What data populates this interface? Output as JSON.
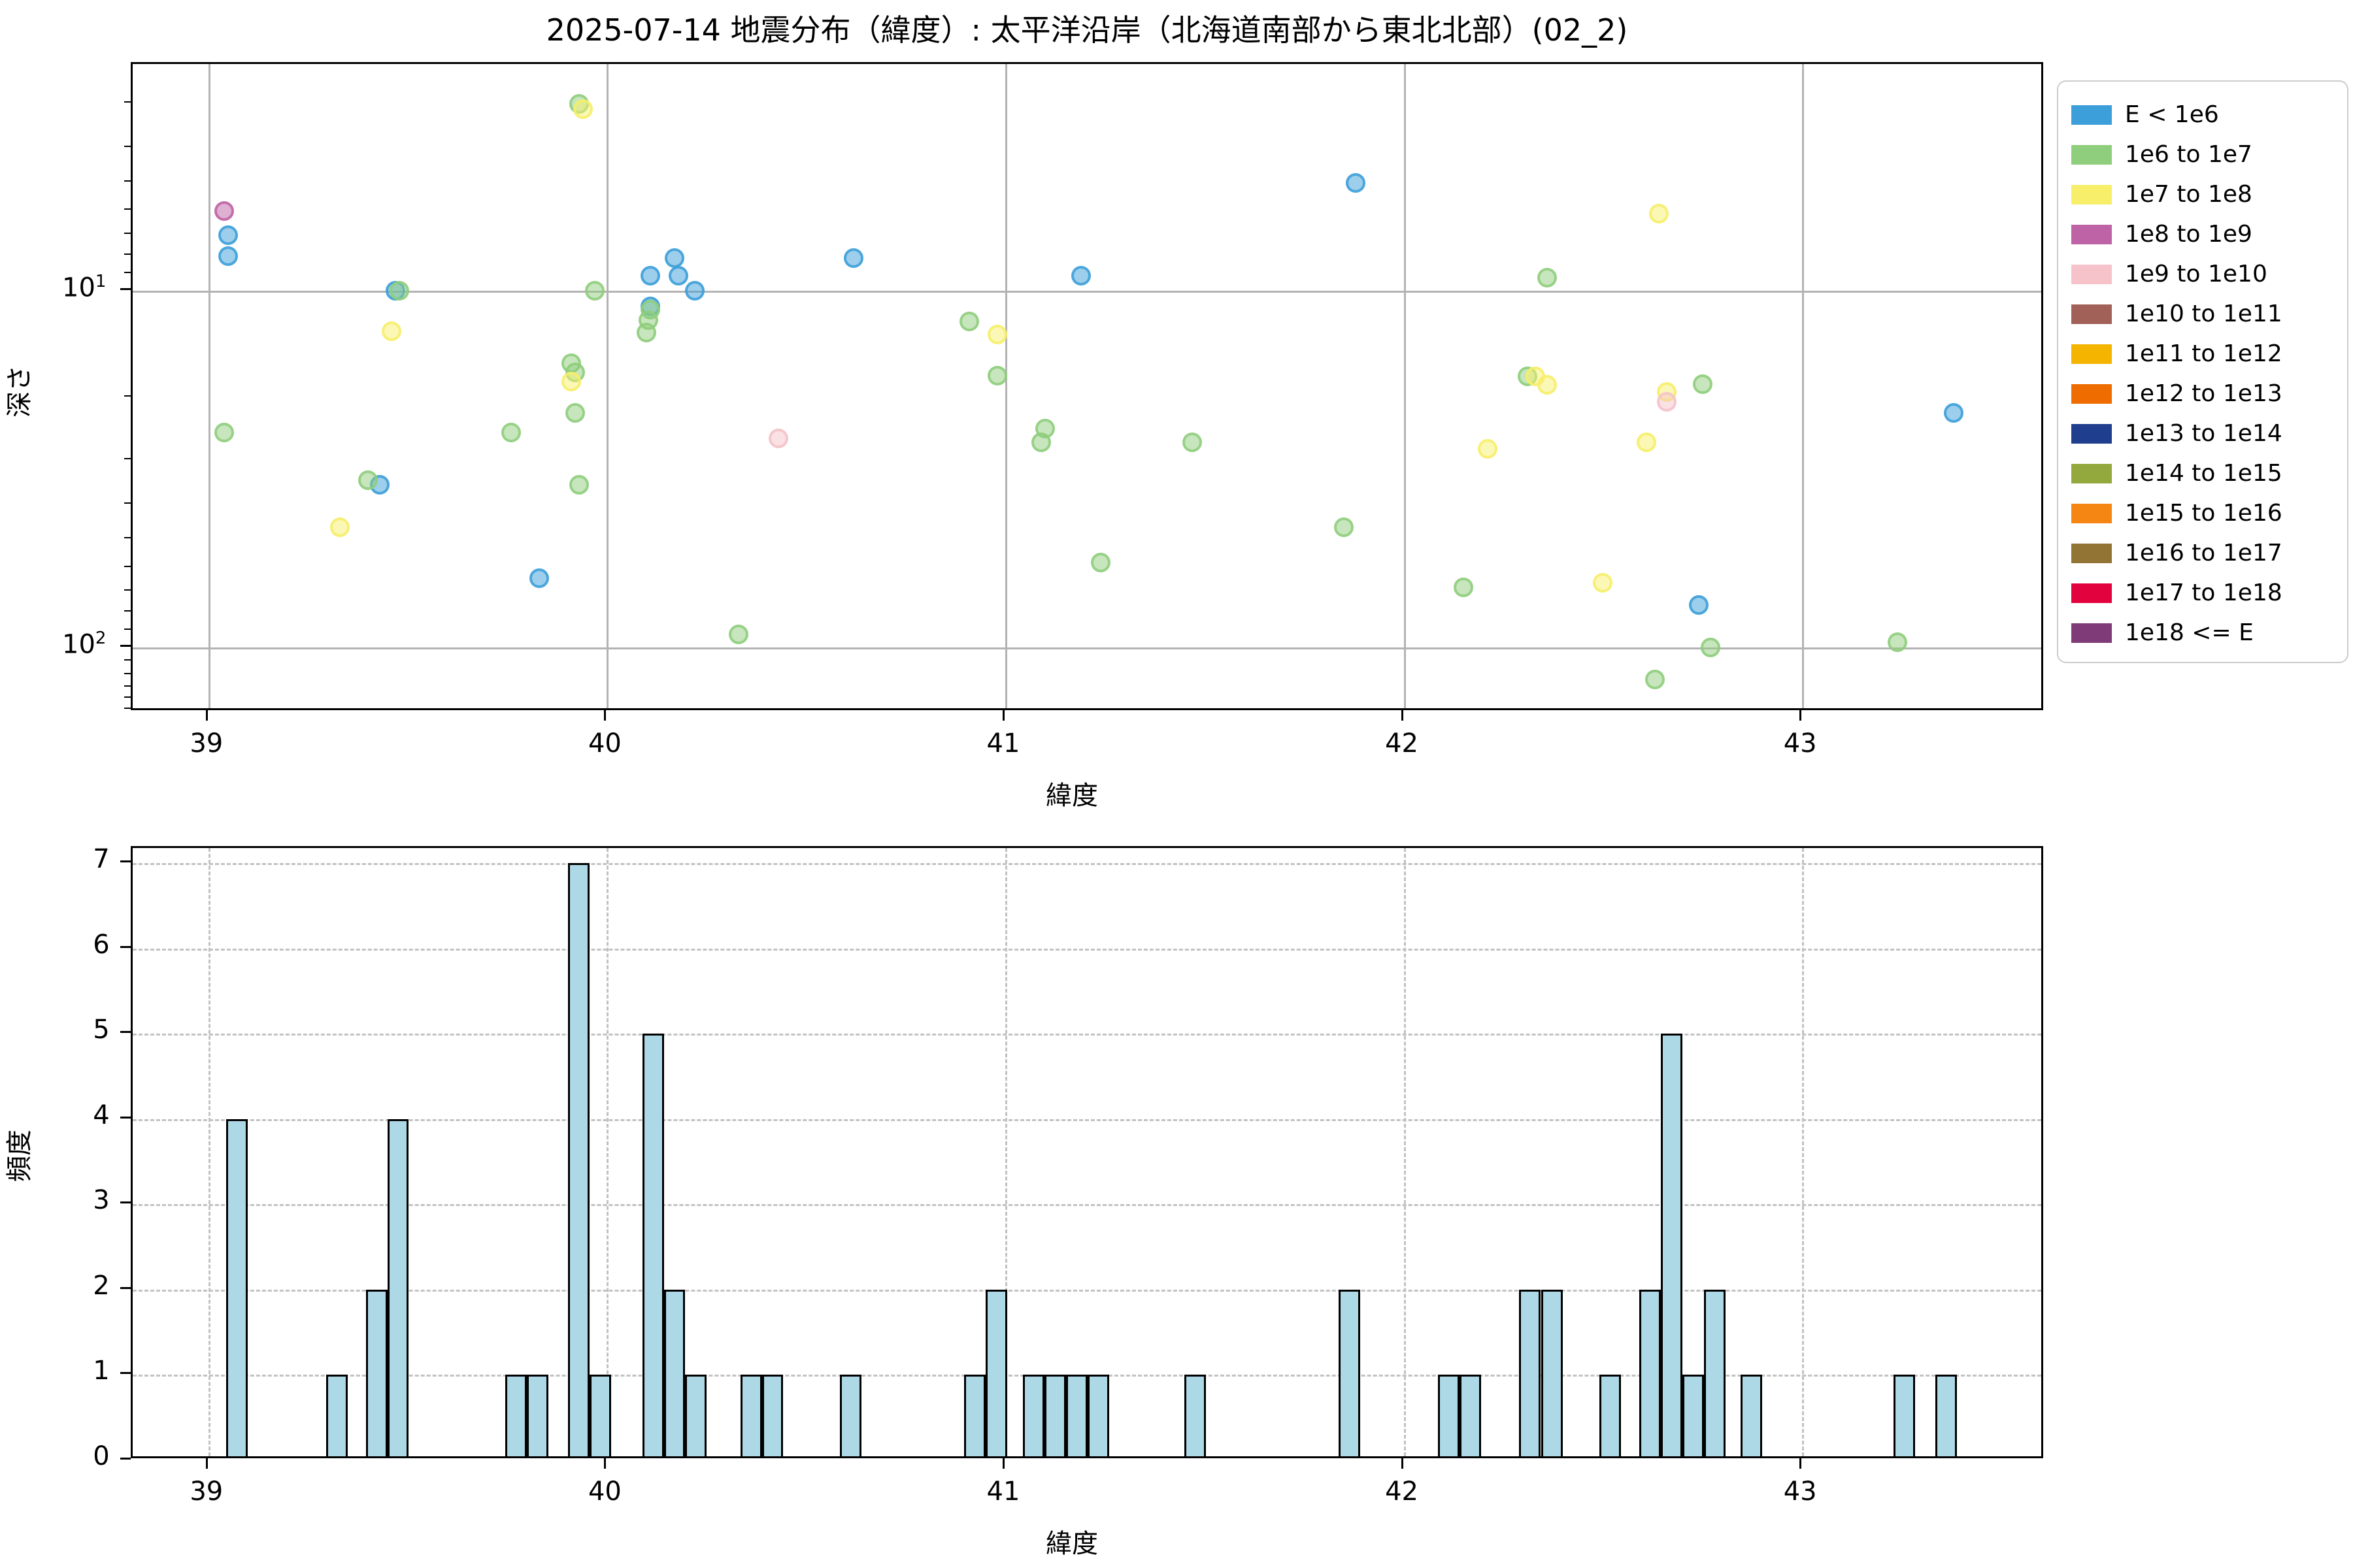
{
  "title": "2025-07-14 地震分布（緯度）: 太平洋沿岸（北海道南部から東北北部）(02_2)",
  "labels": {
    "x_axis": "緯度",
    "y_axis_top": "深さ",
    "y_axis_bottom": "頻度"
  },
  "legend": {
    "items": [
      {
        "label": "E < 1e6",
        "color": "#3C9FD9"
      },
      {
        "label": "1e6 to 1e7",
        "color": "#8FCE7C"
      },
      {
        "label": "1e7 to 1e8",
        "color": "#F7EF6A"
      },
      {
        "label": "1e8 to 1e9",
        "color": "#BE63A5"
      },
      {
        "label": "1e9 to 1e10",
        "color": "#F5C3C9"
      },
      {
        "label": "1e10 to 1e11",
        "color": "#A26158"
      },
      {
        "label": "1e11 to 1e12",
        "color": "#F4B400"
      },
      {
        "label": "1e12 to 1e13",
        "color": "#EE6C00"
      },
      {
        "label": "1e13 to 1e14",
        "color": "#1F3E8E"
      },
      {
        "label": "1e14 to 1e15",
        "color": "#93A83D"
      },
      {
        "label": "1e15 to 1e16",
        "color": "#F58613"
      },
      {
        "label": "1e16 to 1e17",
        "color": "#927435"
      },
      {
        "label": "1e17 to 1e18",
        "color": "#E2023E"
      },
      {
        "label": "1e18 <= E",
        "color": "#7E3B78"
      }
    ]
  },
  "chart_data": [
    {
      "type": "scatter",
      "title": "2025-07-14 地震分布（緯度）: 太平洋沿岸（北海道南部から東北北部）(02_2)",
      "xlabel": "緯度",
      "ylabel": "深さ",
      "x_range": [
        38.81,
        43.61
      ],
      "x_ticks": [
        39,
        40,
        41,
        42,
        43
      ],
      "y_scale": "log",
      "y_inverted": true,
      "y_range": [
        2.32,
        152
      ],
      "y_major_ticks": [
        10,
        100
      ],
      "y_major_tick_exponents": [
        1,
        2
      ],
      "y_minor_ticks": [
        3,
        4,
        5,
        6,
        7,
        8,
        9,
        20,
        30,
        40,
        50,
        60,
        70,
        80,
        90,
        110,
        120,
        130,
        140,
        150
      ],
      "grid": "solid",
      "marker_alpha": 0.5,
      "series": [
        {
          "name": "E < 1e6",
          "color": "#3C9FD9",
          "points": [
            [
              39.05,
              7.0
            ],
            [
              39.05,
              8.0
            ],
            [
              39.47,
              10.0
            ],
            [
              39.43,
              35
            ],
            [
              39.83,
              64
            ],
            [
              40.11,
              9.1
            ],
            [
              40.11,
              11.1
            ],
            [
              40.17,
              8.1
            ],
            [
              40.18,
              9.1
            ],
            [
              40.22,
              10.0
            ],
            [
              40.62,
              8.1
            ],
            [
              41.19,
              9.1
            ],
            [
              41.88,
              5.0
            ],
            [
              42.74,
              76
            ],
            [
              43.38,
              22
            ]
          ]
        },
        {
          "name": "1e6 to 1e7",
          "color": "#8FCE7C",
          "points": [
            [
              39.04,
              25
            ],
            [
              39.48,
              10.0
            ],
            [
              39.4,
              34
            ],
            [
              39.93,
              3.0
            ],
            [
              39.97,
              10.0
            ],
            [
              39.91,
              16
            ],
            [
              39.92,
              17
            ],
            [
              39.92,
              22
            ],
            [
              39.76,
              25
            ],
            [
              39.93,
              35
            ],
            [
              40.105,
              12.1
            ],
            [
              40.1,
              13.1
            ],
            [
              40.11,
              11.3
            ],
            [
              40.33,
              92
            ],
            [
              40.91,
              12.2
            ],
            [
              40.98,
              17.3
            ],
            [
              41.09,
              26.6
            ],
            [
              41.1,
              24.4
            ],
            [
              41.24,
              58
            ],
            [
              41.47,
              26.7
            ],
            [
              41.85,
              46
            ],
            [
              42.15,
              68
            ],
            [
              42.31,
              17.4
            ],
            [
              42.36,
              9.2
            ],
            [
              42.63,
              123
            ],
            [
              42.75,
              18.3
            ],
            [
              42.77,
              100
            ],
            [
              43.24,
              97
            ]
          ]
        },
        {
          "name": "1e7 to 1e8",
          "color": "#F7EF6A",
          "points": [
            [
              39.33,
              46
            ],
            [
              39.46,
              13.0
            ],
            [
              39.94,
              3.1
            ],
            [
              39.91,
              18
            ],
            [
              40.98,
              13.3
            ],
            [
              42.21,
              27.8
            ],
            [
              42.33,
              17.4
            ],
            [
              42.36,
              18.4
            ],
            [
              42.5,
              66
            ],
            [
              42.61,
              26.6
            ],
            [
              42.64,
              6.1
            ],
            [
              42.66,
              19.3
            ]
          ]
        },
        {
          "name": "1e8 to 1e9",
          "color": "#BE63A5",
          "points": [
            [
              39.04,
              6.0
            ]
          ]
        },
        {
          "name": "1e9 to 1e10",
          "color": "#F5C3C9",
          "points": [
            [
              40.43,
              26
            ],
            [
              42.66,
              20.5
            ]
          ]
        }
      ]
    },
    {
      "type": "bar",
      "xlabel": "緯度",
      "ylabel": "頻度",
      "x_range": [
        38.81,
        43.61
      ],
      "x_ticks": [
        39,
        40,
        41,
        42,
        43
      ],
      "y_range": [
        0,
        7.18
      ],
      "y_ticks": [
        0,
        1,
        2,
        3,
        4,
        5,
        6,
        7
      ],
      "grid": "dashed",
      "bar_color": "#ADD8E6",
      "bar_edge_color": "#000000",
      "bin_width": 0.054,
      "bars": [
        [
          39.045,
          4
        ],
        [
          39.295,
          1
        ],
        [
          39.395,
          2
        ],
        [
          39.449,
          4
        ],
        [
          39.745,
          1
        ],
        [
          39.799,
          1
        ],
        [
          39.903,
          7
        ],
        [
          39.957,
          1
        ],
        [
          40.089,
          5
        ],
        [
          40.143,
          2
        ],
        [
          40.197,
          1
        ],
        [
          40.335,
          1
        ],
        [
          40.389,
          1
        ],
        [
          40.585,
          1
        ],
        [
          40.897,
          1
        ],
        [
          40.951,
          2
        ],
        [
          41.045,
          1
        ],
        [
          41.099,
          1
        ],
        [
          41.153,
          1
        ],
        [
          41.207,
          1
        ],
        [
          41.45,
          1
        ],
        [
          41.836,
          2
        ],
        [
          42.086,
          1
        ],
        [
          42.14,
          1
        ],
        [
          42.29,
          2
        ],
        [
          42.346,
          2
        ],
        [
          42.492,
          1
        ],
        [
          42.592,
          2
        ],
        [
          42.646,
          5
        ],
        [
          42.7,
          1
        ],
        [
          42.754,
          2
        ],
        [
          42.846,
          1
        ],
        [
          43.23,
          1
        ],
        [
          43.334,
          1
        ]
      ]
    }
  ]
}
